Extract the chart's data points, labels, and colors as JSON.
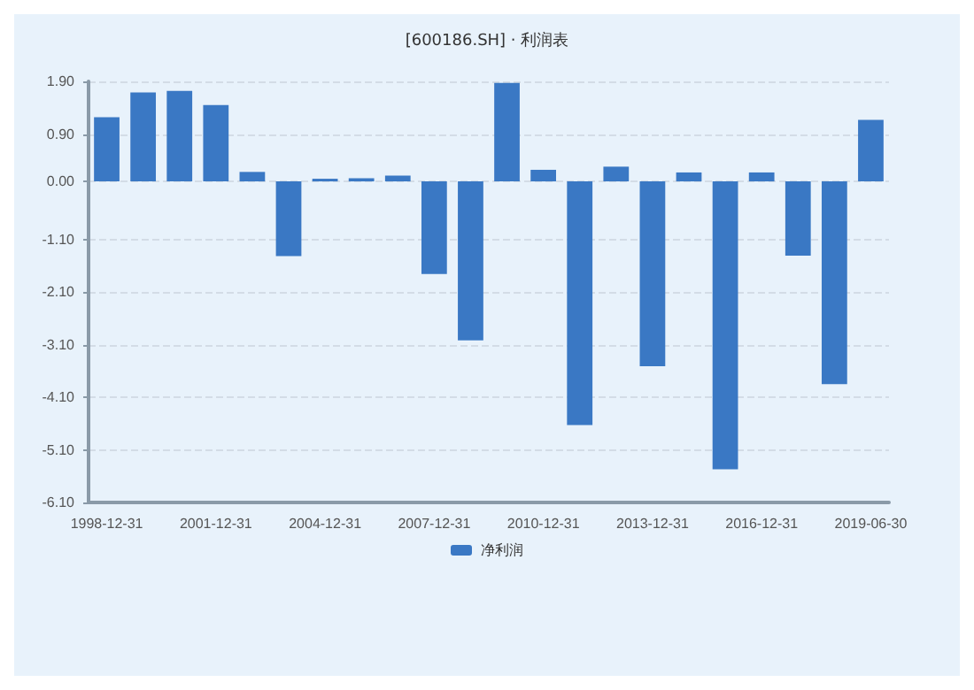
{
  "chart_data": {
    "type": "bar",
    "title": "[600186.SH] · 利润表",
    "categories": [
      "1998-12-31",
      null,
      null,
      "2001-12-31",
      null,
      null,
      "2004-12-31",
      null,
      null,
      "2007-12-31",
      null,
      null,
      "2010-12-31",
      null,
      null,
      "2013-12-31",
      null,
      null,
      "2016-12-31",
      null,
      null,
      "2019-06-30"
    ],
    "series": [
      {
        "name": "净利润",
        "color": "#3a78c4",
        "values": [
          1.22,
          1.69,
          1.72,
          1.45,
          0.18,
          -1.42,
          0.05,
          0.06,
          0.11,
          -1.76,
          -3.02,
          1.87,
          0.22,
          -4.63,
          0.28,
          -3.51,
          0.17,
          -5.47,
          0.17,
          -1.41,
          -3.85,
          1.17
        ]
      }
    ],
    "ylim": [
      -6.1,
      1.9
    ],
    "yticks": [
      {
        "value": 1.9,
        "label": "1.90"
      },
      {
        "value": 0.9,
        "label": "0.90"
      },
      {
        "value": 0,
        "label": "0.00"
      },
      {
        "value": -1.1,
        "label": "-1.10"
      },
      {
        "value": -2.1,
        "label": "-2.10"
      },
      {
        "value": -3.1,
        "label": "-3.10"
      },
      {
        "value": -4.1,
        "label": "-4.10"
      },
      {
        "value": -5.1,
        "label": "-5.10"
      },
      {
        "value": -6.1,
        "label": "-6.10"
      }
    ],
    "grid": "y",
    "legend": "bottom"
  }
}
